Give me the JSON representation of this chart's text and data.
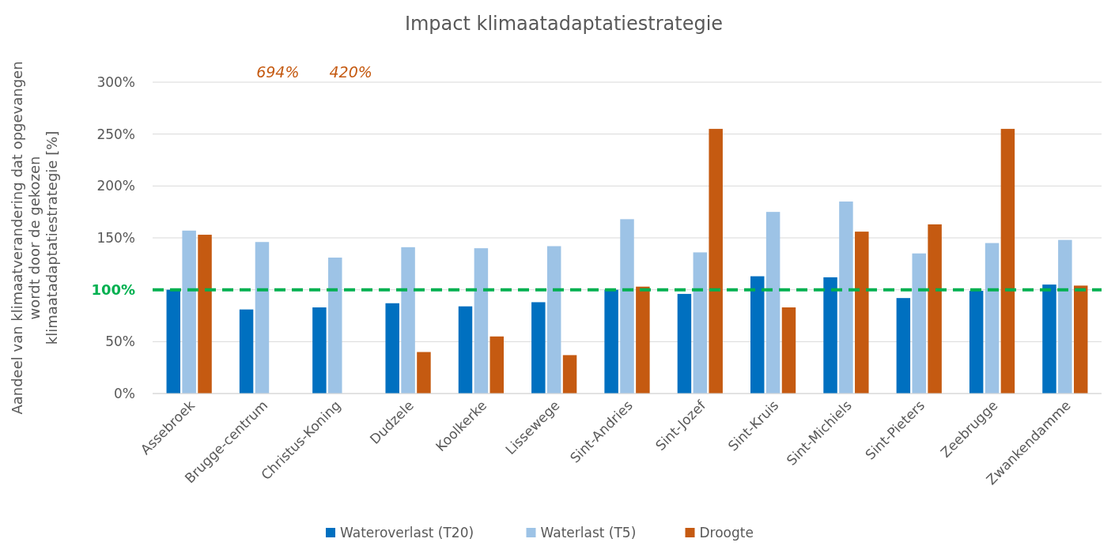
{
  "chart_data": {
    "type": "bar",
    "title": "Impact klimaatadaptatiestrategie",
    "ylabel": "Aandeel van klimaatverandering dat opgevangen wordt door de gekozen klimaatadaptatiestrategie [%]",
    "categories": [
      "Assebroek",
      "Brugge-centrum",
      "Christus-Koning",
      "Dudzele",
      "Koolkerke",
      "Lissewege",
      "Sint-Andries",
      "Sint-Jozef",
      "Sint-Kruis",
      "Sint-Michiels",
      "Sint-Pieters",
      "Zeebrugge",
      "Zwankendamme"
    ],
    "series": [
      {
        "name": "Wateroverlast (T20)",
        "color": "#0070c0",
        "values": [
          100,
          81,
          83,
          87,
          84,
          88,
          100,
          96,
          113,
          112,
          92,
          99,
          105
        ]
      },
      {
        "name": "Waterlast (T5)",
        "color": "#9dc3e6",
        "values": [
          157,
          146,
          131,
          141,
          140,
          142,
          168,
          136,
          175,
          185,
          135,
          145,
          148
        ]
      },
      {
        "name": "Droogte",
        "color": "#c55a11",
        "values": [
          153,
          null,
          null,
          40,
          55,
          37,
          103,
          255,
          83,
          156,
          163,
          255,
          104
        ],
        "value_labels": [
          null,
          "694%",
          "420%",
          null,
          null,
          null,
          null,
          null,
          null,
          null,
          null,
          null,
          null
        ]
      }
    ],
    "ylim": [
      0,
      300
    ],
    "yticks": [
      {
        "value": 0,
        "label": "0%"
      },
      {
        "value": 50,
        "label": "50%"
      },
      {
        "value": 100,
        "label": null
      },
      {
        "value": 150,
        "label": "150%"
      },
      {
        "value": 200,
        "label": "200%"
      },
      {
        "value": 250,
        "label": "250%"
      },
      {
        "value": 300,
        "label": "300%"
      }
    ],
    "grid": "y",
    "legend": "bottom",
    "ref_lines": [
      {
        "axis": "y",
        "value": 100,
        "label": "100%",
        "color": "#00b050",
        "line_style": "dashed"
      }
    ]
  }
}
